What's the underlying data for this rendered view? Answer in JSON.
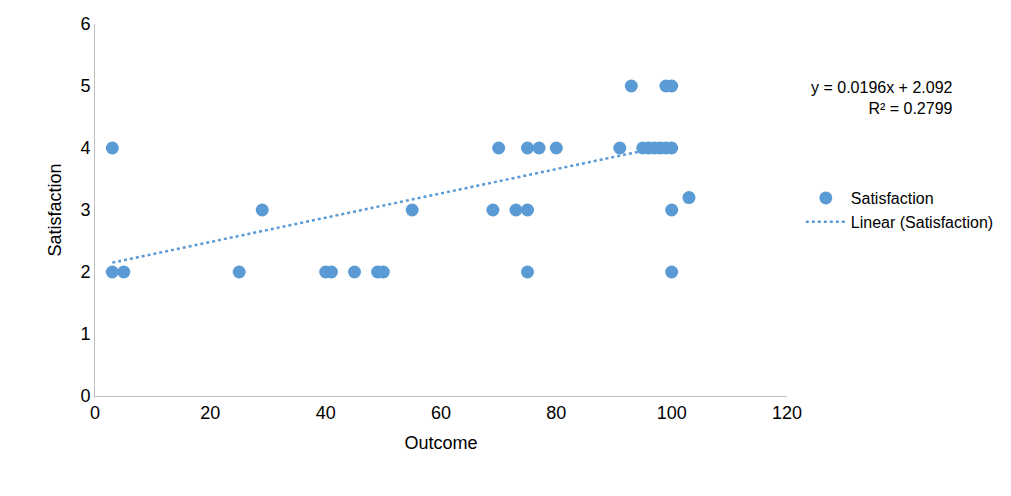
{
  "chart_data": {
    "type": "scatter",
    "x_label": "Outcome",
    "y_label": "Satisfaction",
    "xlim": [
      0,
      120
    ],
    "xticks": [
      0,
      20,
      40,
      60,
      80,
      100,
      120
    ],
    "ylim": [
      0,
      6
    ],
    "yticks": [
      0,
      1,
      2,
      3,
      4,
      5,
      6
    ],
    "grid": false,
    "legend": "right",
    "annotations": [
      "y = 0.0196x + 2.092",
      "R² = 0.2799"
    ],
    "series": [
      {
        "name": "Satisfaction",
        "type": "scatter",
        "marker": "circle",
        "color": "#5b9bd5",
        "x": [
          3,
          3,
          5,
          25,
          29,
          40,
          41,
          45,
          49,
          50,
          55,
          69,
          70,
          73,
          75,
          75,
          75,
          77,
          80,
          91,
          93,
          95,
          96,
          97,
          98,
          99,
          99,
          100,
          100,
          100,
          100,
          103
        ],
        "values": [
          4,
          2,
          2,
          2,
          3,
          2,
          2,
          2,
          2,
          2,
          3,
          3,
          4,
          3,
          4,
          3,
          2,
          4,
          4,
          4,
          5,
          4,
          4,
          4,
          4,
          4,
          5,
          5,
          4,
          3,
          2,
          3.2
        ]
      },
      {
        "name": "Linear (Satisfaction)",
        "type": "line",
        "line_style": "dot",
        "color": "#5b9bd5",
        "x": [
          3,
          100
        ],
        "values": [
          2.151,
          4.052
        ]
      }
    ]
  }
}
